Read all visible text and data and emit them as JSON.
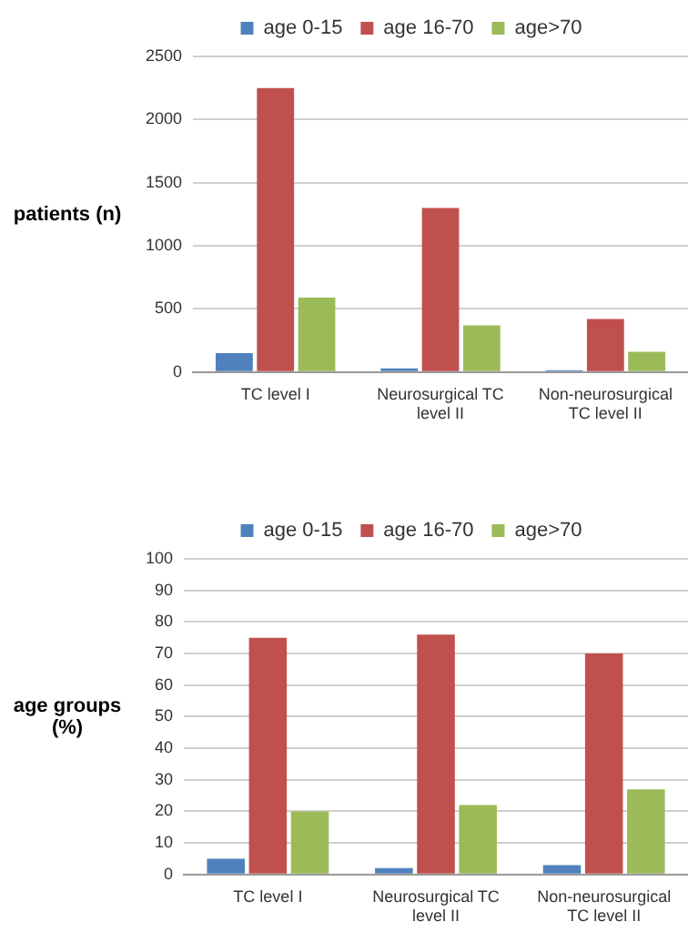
{
  "chart_data": [
    {
      "type": "bar",
      "ylabel": "patients (n)",
      "categories": [
        "TC level I",
        "Neurosurgical TC level II",
        "Non-neurosurgical TC level II"
      ],
      "series": [
        {
          "name": "age 0-15",
          "color": "#4f81bd",
          "values": [
            150,
            30,
            15
          ]
        },
        {
          "name": "age 16-70",
          "color": "#c0504d",
          "values": [
            2250,
            1300,
            420
          ]
        },
        {
          "name": "age>70",
          "color": "#9bbb59",
          "values": [
            590,
            370,
            160
          ]
        }
      ],
      "ylim": [
        0,
        2500
      ],
      "yticks": [
        0,
        500,
        1000,
        1500,
        2000,
        2500
      ],
      "grid": "y",
      "legend": "top"
    },
    {
      "type": "bar",
      "ylabel": "age groups (%)",
      "categories": [
        "TC level I",
        "Neurosurgical TC level II",
        "Non-neurosurgical TC level II"
      ],
      "series": [
        {
          "name": "age 0-15",
          "color": "#4f81bd",
          "values": [
            5,
            2,
            3
          ]
        },
        {
          "name": "age 16-70",
          "color": "#c0504d",
          "values": [
            75,
            76,
            70
          ]
        },
        {
          "name": "age>70",
          "color": "#9bbb59",
          "values": [
            20,
            22,
            27
          ]
        }
      ],
      "ylim": [
        0,
        100
      ],
      "yticks": [
        0,
        10,
        20,
        30,
        40,
        50,
        60,
        70,
        80,
        90,
        100
      ],
      "grid": "y",
      "legend": "top"
    }
  ]
}
